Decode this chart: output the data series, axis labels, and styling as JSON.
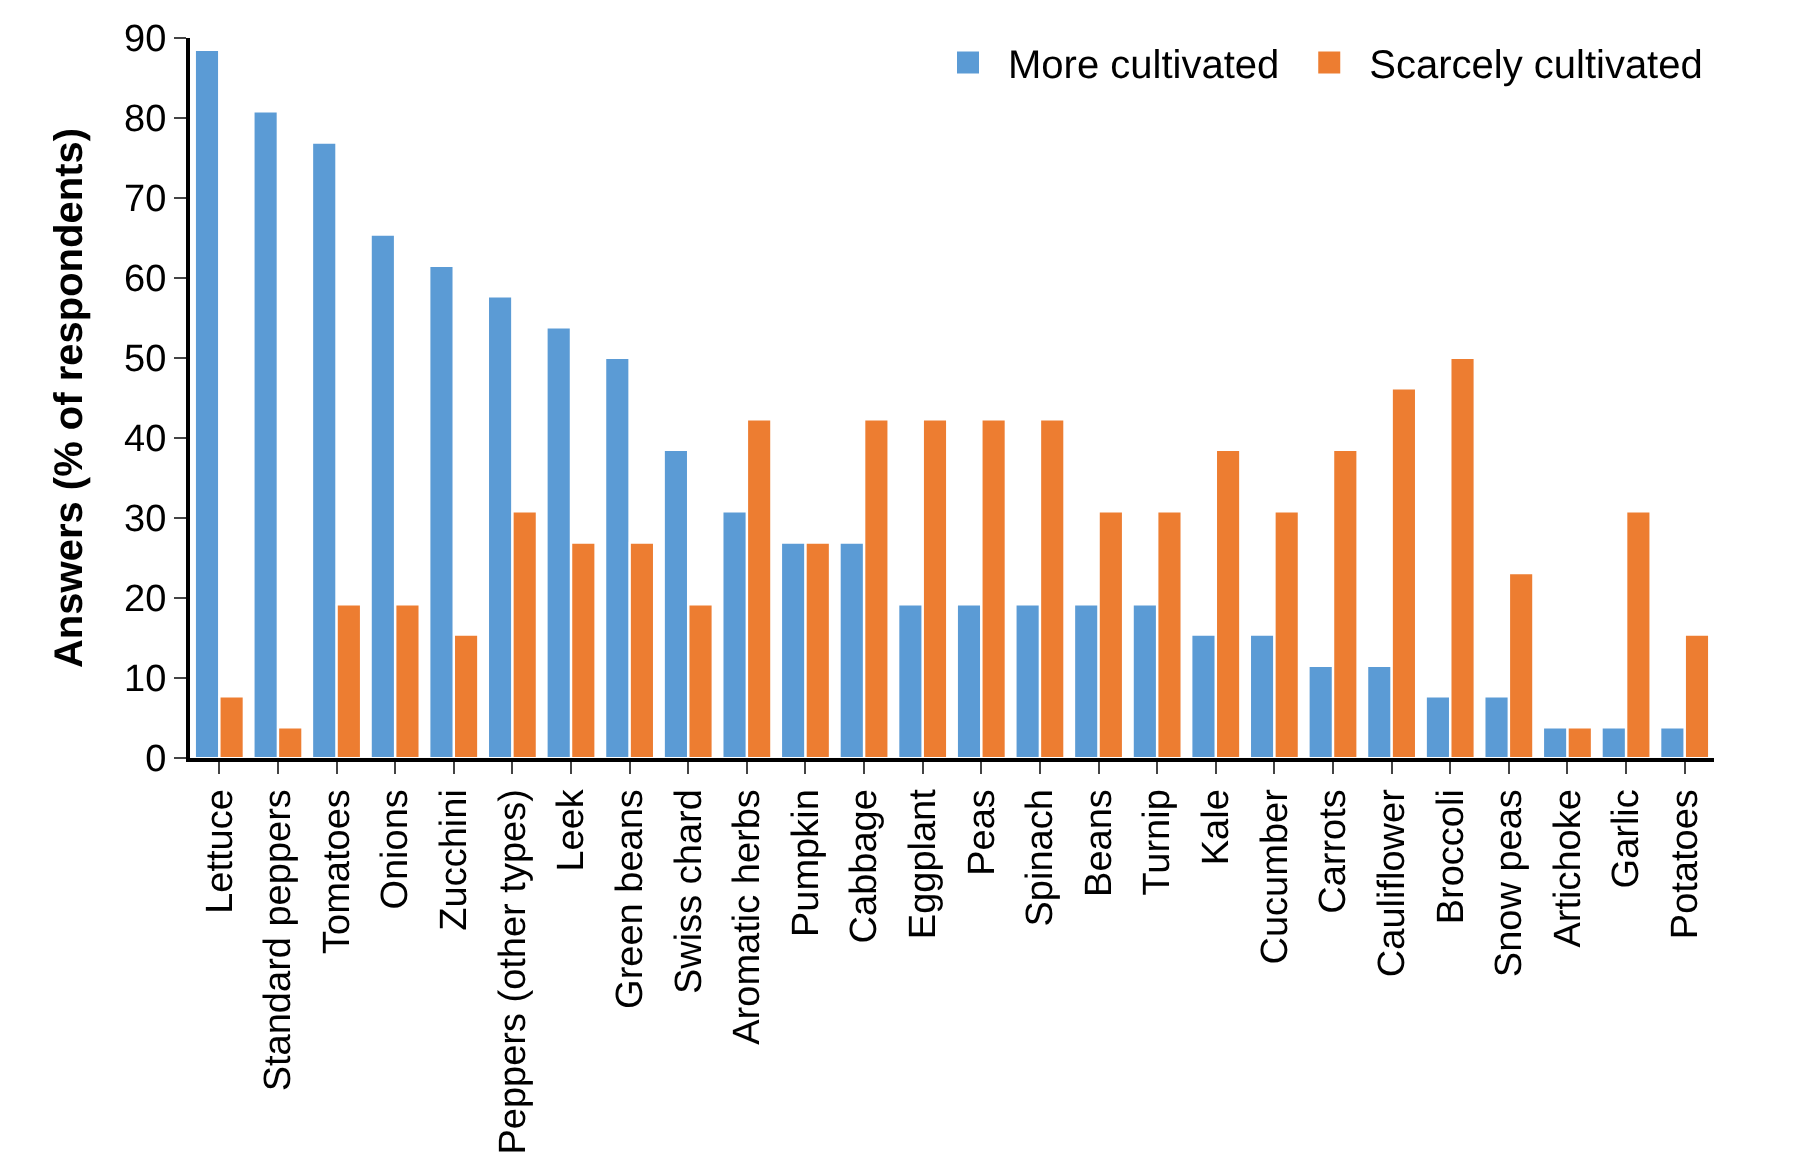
{
  "chart_data": {
    "type": "bar",
    "ylabel": "Answers (% of respondents)",
    "categories": [
      "Lettuce",
      "Standard peppers",
      "Tomatoes",
      "Onions",
      "Zucchini",
      "Peppers (other types)",
      "Leek",
      "Green beans",
      "Swiss chard",
      "Aromatic herbs",
      "Pumpkin",
      "Cabbage",
      "Eggplant",
      "Peas",
      "Spinach",
      "Beans",
      "Turnip",
      "Kale",
      "Cucumber",
      "Carrots",
      "Cauliflower",
      "Broccoli",
      "Snow peas",
      "Artichoke",
      "Garlic",
      "Potatoes"
    ],
    "series": [
      {
        "name": "More cultivated",
        "color": "#5b9bd5",
        "values": [
          88.5,
          80.8,
          76.9,
          65.4,
          61.5,
          57.7,
          53.8,
          50,
          38.5,
          30.8,
          26.9,
          26.9,
          19.2,
          19.2,
          19.2,
          19.2,
          19.2,
          15.4,
          15.4,
          11.5,
          11.5,
          7.7,
          7.7,
          3.8,
          3.8,
          3.8
        ]
      },
      {
        "name": "Scarcely cultivated",
        "color": "#ed7d31",
        "values": [
          7.7,
          3.8,
          19.2,
          19.2,
          15.4,
          30.8,
          26.9,
          26.9,
          19.2,
          42.3,
          26.9,
          42.3,
          42.3,
          42.3,
          42.3,
          30.8,
          30.8,
          38.5,
          30.8,
          38.5,
          46.2,
          50,
          23.1,
          3.8,
          30.8,
          15.4
        ]
      }
    ],
    "ylim": [
      0,
      90
    ],
    "yticks": [
      0,
      10,
      20,
      30,
      40,
      50,
      60,
      70,
      80,
      90
    ],
    "legend": "top right"
  }
}
